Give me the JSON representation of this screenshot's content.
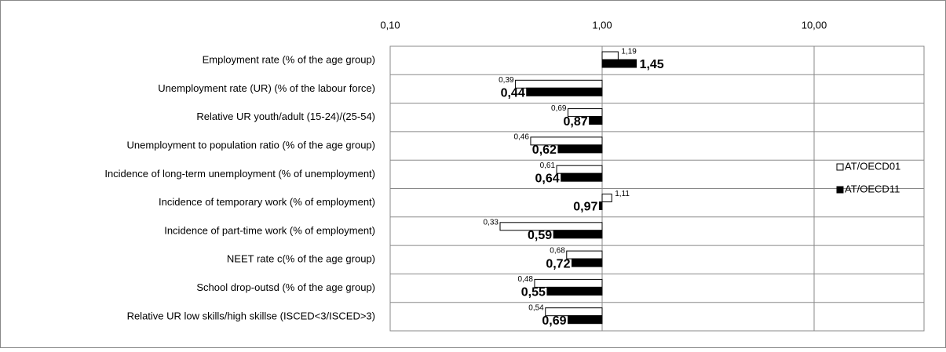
{
  "chart_data": {
    "type": "bar",
    "orientation": "horizontal",
    "x_log_scale": true,
    "grid": true,
    "legend_position": "right",
    "categories": [
      "Employment rate (% of the age group)",
      "Unemployment rate (UR) (% of the labour force)",
      "Relative UR youth/adult (15-24)/(25-54)",
      "Unemployment to population ratio (% of the age group)",
      "Incidence of long-term unemployment (% of unemployment)",
      "Incidence of temporary work (% of employment)",
      "Incidence of part-time work (% of employment)",
      "NEET rate c(% of the age group)",
      "School drop-outsd (% of the age group)",
      "Relative UR low skills/high skillse (ISCED<3/ISCED>3)"
    ],
    "series": [
      {
        "name": "AT/OECD01",
        "color": "#ffffff",
        "values": [
          1.19,
          0.39,
          0.69,
          0.46,
          0.61,
          1.11,
          0.33,
          0.68,
          0.48,
          0.54
        ],
        "value_labels": [
          "1,19",
          "0,39",
          "0,69",
          "0,46",
          "0,61",
          "1,11",
          "0,33",
          "0,68",
          "0,48",
          "0,54"
        ]
      },
      {
        "name": "AT/OECD11",
        "color": "#000000",
        "values": [
          1.45,
          0.44,
          0.87,
          0.62,
          0.64,
          0.97,
          0.59,
          0.72,
          0.55,
          0.69
        ],
        "value_labels": [
          "1,45",
          "0,44",
          "0,87",
          "0,62",
          "0,64",
          "0,97",
          "0,59",
          "0,72",
          "0,55",
          "0,69"
        ]
      }
    ],
    "xlim": [
      0.1,
      33
    ],
    "xticks": [
      {
        "value": 0.1,
        "label": "0,10"
      },
      {
        "value": 1,
        "label": "1,00"
      },
      {
        "value": 10,
        "label": "10,00"
      }
    ]
  }
}
